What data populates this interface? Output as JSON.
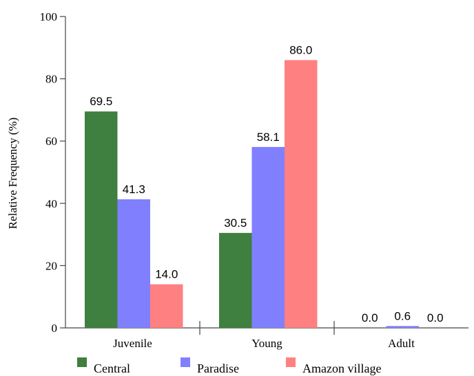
{
  "chart_data": {
    "type": "bar",
    "categories": [
      "Juvenile",
      "Young",
      "Adult"
    ],
    "series": [
      {
        "name": "Central",
        "values": [
          69.5,
          30.5,
          0.0
        ],
        "value_labels": [
          "69.5",
          "30.5",
          "0.0"
        ],
        "color": "#3f7f3f"
      },
      {
        "name": "Paradise",
        "values": [
          41.3,
          58.1,
          0.6
        ],
        "value_labels": [
          "41.3",
          "58.1",
          "0.6"
        ],
        "color": "#8080ff"
      },
      {
        "name": "Amazon village",
        "values": [
          14.0,
          86.0,
          0.0
        ],
        "value_labels": [
          "14.0",
          "86.0",
          "0.0"
        ],
        "color": "#ff8080"
      }
    ],
    "title": "",
    "xlabel": "",
    "ylabel": "Relative Frequency (%)",
    "ylim": [
      0,
      100
    ],
    "yticks": [
      0,
      20,
      40,
      60,
      80,
      100
    ],
    "ytick_labels": [
      "0",
      "20",
      "40",
      "60",
      "80",
      "100"
    ],
    "grid": false,
    "legend_position": "bottom"
  }
}
